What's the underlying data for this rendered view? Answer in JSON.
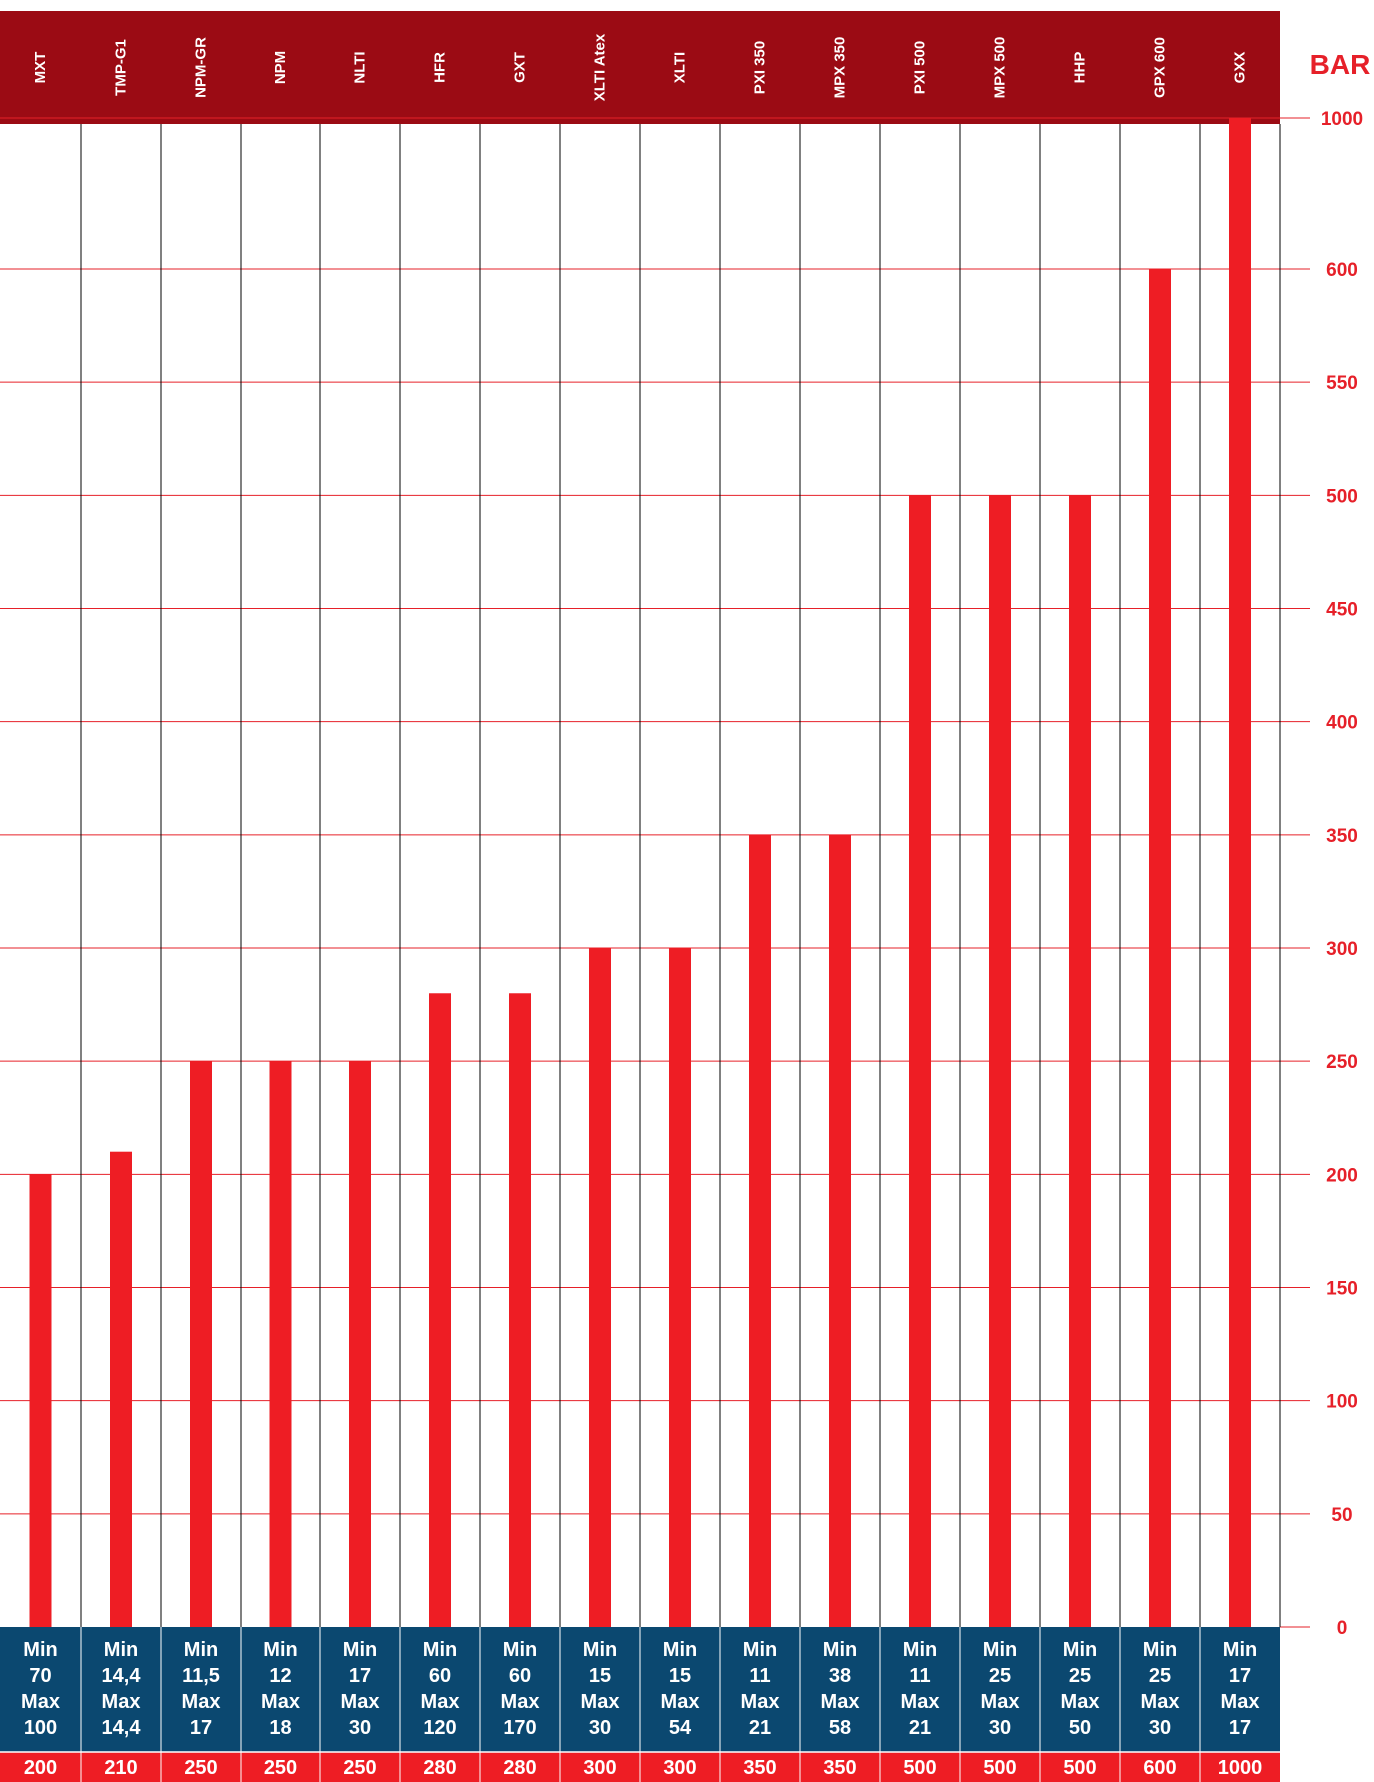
{
  "chart_data": {
    "type": "bar",
    "unit_label": "BAR",
    "categories": [
      "MXT",
      "TMP-G1",
      "NPM-GR",
      "NPM",
      "NLTI",
      "HFR",
      "GXT",
      "XLTI Atex",
      "XLTI",
      "PXI 350",
      "MPX 350",
      "PXI 500",
      "MPX 500",
      "HHP",
      "GPX 600",
      "GXX"
    ],
    "values": [
      200,
      210,
      250,
      250,
      250,
      280,
      280,
      300,
      300,
      350,
      350,
      500,
      500,
      500,
      600,
      1000
    ],
    "value_labels": [
      "200",
      "210",
      "250",
      "250",
      "250",
      "280",
      "280",
      "300",
      "300",
      "350",
      "350",
      "500",
      "500",
      "500",
      "600",
      "1000"
    ],
    "info": [
      [
        "Min",
        "70",
        "Max",
        "100"
      ],
      [
        "Min",
        "14,4",
        "Max",
        "14,4"
      ],
      [
        "Min",
        "11,5",
        "Max",
        "17"
      ],
      [
        "Min",
        "12",
        "Max",
        "18"
      ],
      [
        "Min",
        "17",
        "Max",
        "30"
      ],
      [
        "Min",
        "60",
        "Max",
        "120"
      ],
      [
        "Min",
        "60",
        "Max",
        "170"
      ],
      [
        "Min",
        "15",
        "Max",
        "30"
      ],
      [
        "Min",
        "15",
        "Max",
        "54"
      ],
      [
        "Min",
        "11",
        "Max",
        "21"
      ],
      [
        "Min",
        "38",
        "Max",
        "58"
      ],
      [
        "Min",
        "11",
        "Max",
        "21"
      ],
      [
        "Min",
        "25",
        "Max",
        "30"
      ],
      [
        "Min",
        "25",
        "Max",
        "50"
      ],
      [
        "Min",
        "25",
        "Max",
        "30"
      ],
      [
        "Min",
        "17",
        "Max",
        "17"
      ]
    ],
    "y_ticks": [
      0,
      50,
      100,
      150,
      200,
      250,
      300,
      350,
      400,
      450,
      500,
      550,
      600,
      1000
    ],
    "y_tick_labels": [
      "0",
      "50",
      "100",
      "150",
      "200",
      "250",
      "300",
      "350",
      "400",
      "450",
      "500",
      "550",
      "600",
      "1000"
    ],
    "y_scale": "linear 0–600, then axis break at 600 up to 1000",
    "ylim": [
      0,
      1000
    ],
    "grid": true,
    "colors": {
      "header": "#9b0b14",
      "bar": "#ee1d24",
      "gridline": "#e62029",
      "info_row": "#0b4870",
      "value_row": "#ee1d24",
      "tick_text": "#e62029",
      "divider": "#000000"
    }
  }
}
